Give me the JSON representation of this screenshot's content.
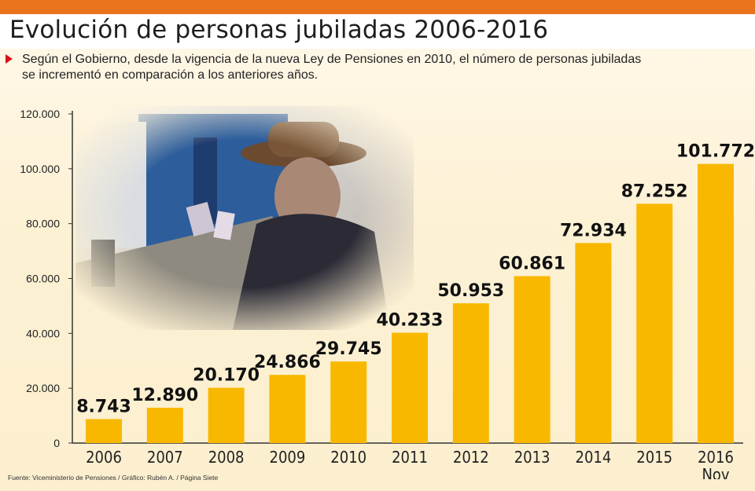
{
  "header": {
    "title": "Evolución de personas jubiladas  2006-2016",
    "subtitle": "Según el Gobierno, desde la vigencia de la nueva Ley de Pensiones en 2010, el número de personas jubiladas se incrementó en comparación a los anteriores años.",
    "source": "Fuente: Viceministerio de Pensiones / Gráfico: Rubén A. / Página Siete"
  },
  "colors": {
    "topbar": "#e9731c",
    "bar": "#f9b800",
    "bullet": "#d6121b"
  },
  "chart_data": {
    "type": "bar",
    "title": "Evolución de personas jubiladas 2006-2016",
    "xlabel": "",
    "ylabel": "",
    "categories": [
      "2006",
      "2007",
      "2008",
      "2009",
      "2010",
      "2011",
      "2012",
      "2013",
      "2014",
      "2015",
      "2016"
    ],
    "category_sublabels": [
      "",
      "",
      "",
      "",
      "",
      "",
      "",
      "",
      "",
      "",
      "Nov"
    ],
    "values": [
      8743,
      12890,
      20170,
      24866,
      29745,
      40233,
      50953,
      60861,
      72934,
      87252,
      101772
    ],
    "value_labels": [
      "8.743",
      "12.890",
      "20.170",
      "24.866",
      "29.745",
      "40.233",
      "50.953",
      "60.861",
      "72.934",
      "87.252",
      "101.772"
    ],
    "ylim": [
      0,
      120000
    ],
    "yticks": [
      0,
      20000,
      40000,
      60000,
      80000,
      100000,
      120000
    ],
    "ytick_labels": [
      "0",
      "20.000",
      "40.000",
      "60.000",
      "80.000",
      "100.000",
      "120.000"
    ],
    "grid": false,
    "legend": "none"
  }
}
